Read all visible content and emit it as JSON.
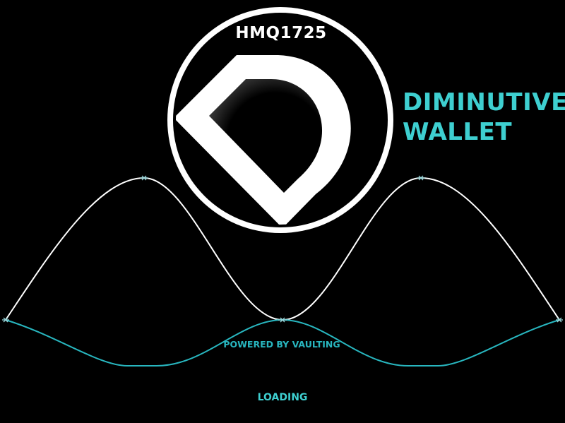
{
  "colors": {
    "background": "#000000",
    "accent": "#3ecfd0",
    "wave_primary": "#ffffff",
    "wave_secondary": "#28b6bf",
    "logo": "#ffffff"
  },
  "logo": {
    "ticker": "HMQ1725",
    "icon": "diamond-d-logo-icon"
  },
  "product": {
    "name_line1": "DIMINUTIVE",
    "name_line2": "WALLET"
  },
  "footer": {
    "powered_by": "POWERED BY VAULTING",
    "status": "LOADING"
  }
}
